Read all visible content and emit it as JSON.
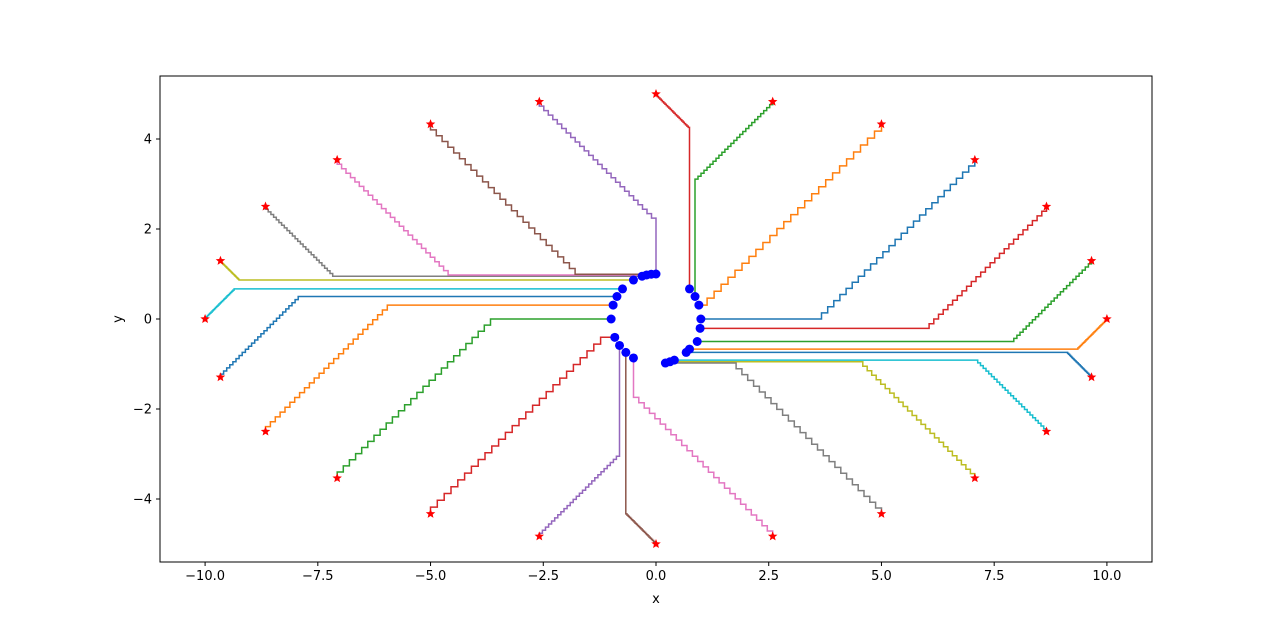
{
  "chart_data": {
    "type": "line",
    "title": "",
    "xlabel": "x",
    "ylabel": "y",
    "xlim": [
      -11,
      11
    ],
    "ylim": [
      -5.4,
      5.4
    ],
    "xticks": [
      -10.0,
      -7.5,
      -5.0,
      -2.5,
      0.0,
      2.5,
      5.0,
      7.5,
      10.0
    ],
    "xtick_labels": [
      "−10.0",
      "−7.5",
      "−5.0",
      "−2.5",
      "0.0",
      "2.5",
      "5.0",
      "7.5",
      "10.0"
    ],
    "yticks": [
      -4,
      -2,
      0,
      2,
      4
    ],
    "ytick_labels": [
      "−4",
      "−2",
      "0",
      "2",
      "4"
    ],
    "grid": false,
    "legend": "none",
    "step_count": 26,
    "start_circle": {
      "cx": 0,
      "cy": 0,
      "r": 1,
      "count": 30
    },
    "targets": [
      {
        "x": 0.0,
        "y": 5.0
      },
      {
        "x": 2.588,
        "y": 4.83
      },
      {
        "x": 5.0,
        "y": 4.33
      },
      {
        "x": 7.071,
        "y": 3.536
      },
      {
        "x": 8.66,
        "y": 2.5
      },
      {
        "x": 9.659,
        "y": 1.294
      },
      {
        "x": 10.0,
        "y": 0.0
      },
      {
        "x": 9.659,
        "y": -1.294
      },
      {
        "x": 8.66,
        "y": -2.5
      },
      {
        "x": 7.071,
        "y": -3.536
      },
      {
        "x": 5.0,
        "y": -4.33
      },
      {
        "x": 2.588,
        "y": -4.83
      },
      {
        "x": 0.0,
        "y": -5.0
      },
      {
        "x": -2.588,
        "y": -4.83
      },
      {
        "x": -5.0,
        "y": -4.33
      },
      {
        "x": -7.071,
        "y": -3.536
      },
      {
        "x": -8.66,
        "y": -2.5
      },
      {
        "x": -9.659,
        "y": -1.294
      },
      {
        "x": -10.0,
        "y": 0.0
      },
      {
        "x": -9.659,
        "y": 1.294
      },
      {
        "x": -8.66,
        "y": 2.5
      },
      {
        "x": -7.071,
        "y": 3.536
      },
      {
        "x": -5.0,
        "y": 4.33
      },
      {
        "x": -2.588,
        "y": 4.83
      }
    ],
    "series": [
      {
        "color": "#d62728",
        "start": [
          0.743,
          0.669
        ],
        "target": [
          0.0,
          5.0
        ]
      },
      {
        "color": "#2ca02c",
        "start": [
          0.866,
          0.5
        ],
        "target": [
          2.588,
          4.83
        ]
      },
      {
        "color": "#ff7f0e",
        "start": [
          0.951,
          0.309
        ],
        "target": [
          5.0,
          4.33
        ]
      },
      {
        "color": "#1f77b4",
        "start": [
          0.995,
          0.0
        ],
        "target": [
          7.071,
          3.536
        ]
      },
      {
        "color": "#d62728",
        "start": [
          0.978,
          -0.208
        ],
        "target": [
          8.66,
          2.5
        ]
      },
      {
        "color": "#2ca02c",
        "start": [
          0.914,
          -0.5
        ],
        "target": [
          9.659,
          1.294
        ]
      },
      {
        "color": "#ff7f0e",
        "start": [
          0.743,
          -0.669
        ],
        "target": [
          10.0,
          0.0
        ]
      },
      {
        "color": "#1f77b4",
        "start": [
          0.669,
          -0.743
        ],
        "target": [
          9.659,
          -1.294
        ]
      },
      {
        "color": "#17becf",
        "start": [
          0.407,
          -0.914
        ],
        "target": [
          8.66,
          -2.5
        ]
      },
      {
        "color": "#bcbd22",
        "start": [
          0.309,
          -0.951
        ],
        "target": [
          7.071,
          -3.536
        ]
      },
      {
        "color": "#7f7f7f",
        "start": [
          0.208,
          -0.978
        ],
        "target": [
          5.0,
          -4.33
        ]
      },
      {
        "color": "#e377c2",
        "start": [
          -0.5,
          -0.866
        ],
        "target": [
          2.588,
          -4.83
        ]
      },
      {
        "color": "#8c564b",
        "start": [
          -0.669,
          -0.743
        ],
        "target": [
          0.0,
          -5.0
        ]
      },
      {
        "color": "#9467bd",
        "start": [
          -0.809,
          -0.588
        ],
        "target": [
          -2.588,
          -4.83
        ]
      },
      {
        "color": "#d62728",
        "start": [
          -0.914,
          -0.407
        ],
        "target": [
          -5.0,
          -4.33
        ]
      },
      {
        "color": "#2ca02c",
        "start": [
          -0.995,
          0.0
        ],
        "target": [
          -7.071,
          -3.536
        ]
      },
      {
        "color": "#ff7f0e",
        "start": [
          -0.951,
          0.309
        ],
        "target": [
          -8.66,
          -2.5
        ]
      },
      {
        "color": "#1f77b4",
        "start": [
          -0.866,
          0.5
        ],
        "target": [
          -9.659,
          -1.294
        ]
      },
      {
        "color": "#17becf",
        "start": [
          -0.743,
          0.669
        ],
        "target": [
          -10.0,
          0.0
        ]
      },
      {
        "color": "#bcbd22",
        "start": [
          -0.5,
          0.866
        ],
        "target": [
          -9.659,
          1.294
        ]
      },
      {
        "color": "#7f7f7f",
        "start": [
          -0.309,
          0.951
        ],
        "target": [
          -8.66,
          2.5
        ]
      },
      {
        "color": "#e377c2",
        "start": [
          -0.208,
          0.978
        ],
        "target": [
          -7.071,
          3.536
        ]
      },
      {
        "color": "#8c564b",
        "start": [
          -0.105,
          0.995
        ],
        "target": [
          -5.0,
          4.33
        ]
      },
      {
        "color": "#9467bd",
        "start": [
          0.0,
          1.0
        ],
        "target": [
          -2.588,
          4.83
        ]
      }
    ],
    "start_marker_color": "#0000ff",
    "target_marker_color": "#ff0000"
  }
}
